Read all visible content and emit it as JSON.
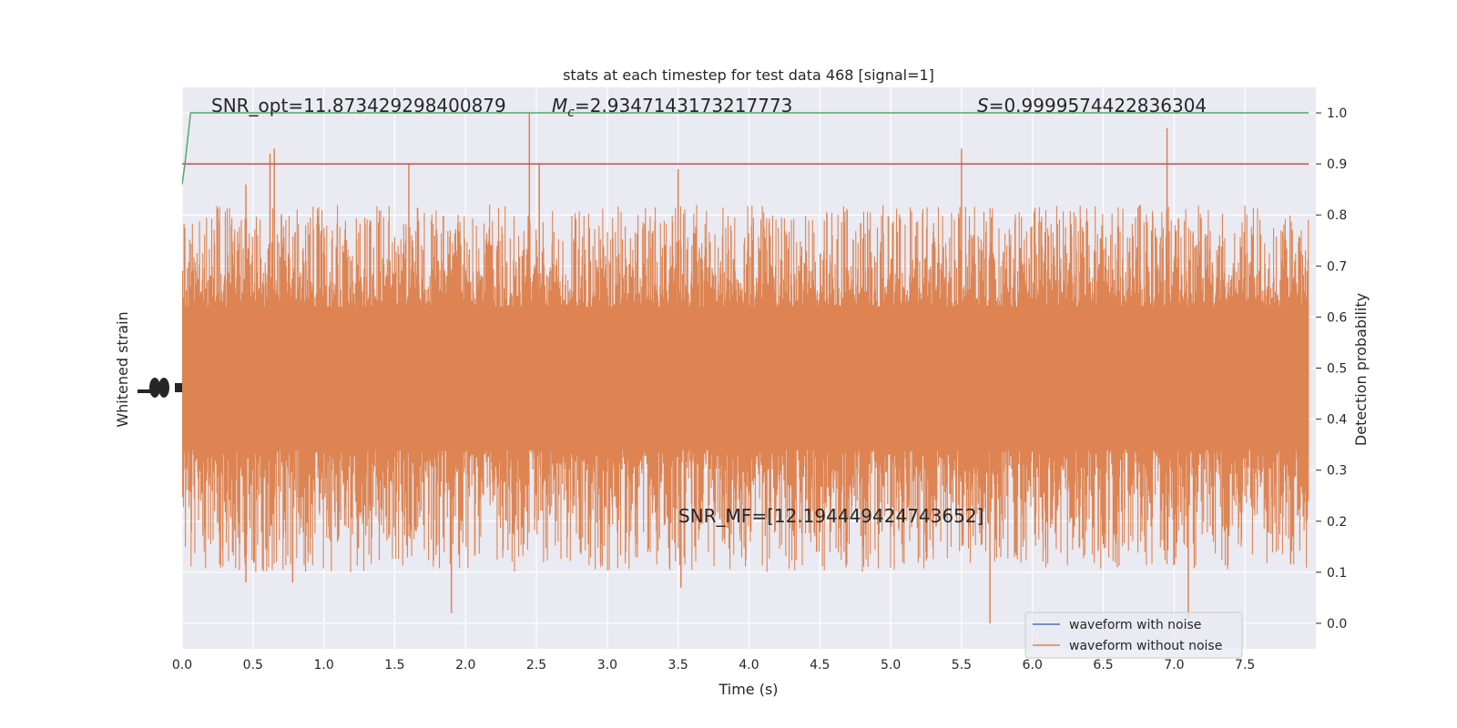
{
  "chart_data": {
    "type": "line",
    "title": "stats at each timestep for test data 468 [signal=1]",
    "xlabel": "Time (s)",
    "ylabel_left": "Whitened strain",
    "ylabel_right": "Detection probability",
    "xlim": [
      0.0,
      8.0
    ],
    "ylim_right": [
      -0.05,
      1.05
    ],
    "x_ticks": [
      "0.0",
      "0.5",
      "1.0",
      "1.5",
      "2.0",
      "2.5",
      "3.0",
      "3.5",
      "4.0",
      "4.5",
      "5.0",
      "5.5",
      "6.0",
      "6.5",
      "7.0",
      "7.5"
    ],
    "y_ticks_right": [
      "0.0",
      "0.1",
      "0.2",
      "0.3",
      "0.4",
      "0.5",
      "0.6",
      "0.7",
      "0.8",
      "0.9",
      "1.0"
    ],
    "grid": true,
    "legend_position": "lower-right",
    "annotations": {
      "snr_opt": "SNR_opt=11.873429298400879",
      "mc_symbol": "M",
      "mc_subscript": "c",
      "mc_value": "=2.9347143173217773",
      "s_symbol": "S",
      "s_value": "=0.9999574422836304",
      "snr_mf": "SNR_MF=[12.194449424743652]"
    },
    "threshold": 0.9,
    "series": [
      {
        "name": "waveform with noise",
        "color": "#4c72b0",
        "description_values": "hidden behind orange trace"
      },
      {
        "name": "waveform without noise",
        "color": "#dd8452",
        "band_core": [
          0.34,
          0.62
        ],
        "band_typical": [
          0.2,
          0.72
        ],
        "peaks": [
          {
            "x": 0.45,
            "y": 0.86
          },
          {
            "x": 0.62,
            "y": 0.92
          },
          {
            "x": 0.65,
            "y": 0.93
          },
          {
            "x": 1.6,
            "y": 0.9
          },
          {
            "x": 2.45,
            "y": 1.0
          },
          {
            "x": 2.52,
            "y": 0.9
          },
          {
            "x": 3.5,
            "y": 0.89
          },
          {
            "x": 5.5,
            "y": 0.93
          },
          {
            "x": 6.95,
            "y": 0.97
          }
        ],
        "troughs": [
          {
            "x": 0.45,
            "y": 0.08
          },
          {
            "x": 0.78,
            "y": 0.08
          },
          {
            "x": 1.9,
            "y": 0.02
          },
          {
            "x": 3.52,
            "y": 0.07
          },
          {
            "x": 5.7,
            "y": 0.0
          },
          {
            "x": 7.1,
            "y": 0.01
          }
        ]
      }
    ],
    "detection_probability": {
      "color": "#55a868",
      "points": [
        [
          0.0,
          0.86
        ],
        [
          0.02,
          0.9
        ],
        [
          0.06,
          1.0
        ],
        [
          7.95,
          1.0
        ]
      ]
    },
    "threshold_color": "#c44e52",
    "colors": {
      "plot_background": "#eaeaf2",
      "grid": "#ffffff",
      "text": "#262626"
    }
  }
}
